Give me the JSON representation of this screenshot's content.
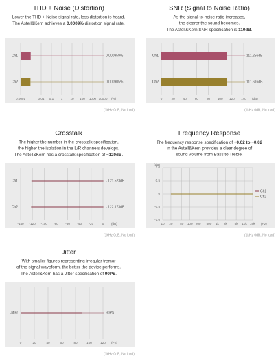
{
  "chart_data": [
    {
      "type": "bar",
      "title": "THD + Noise (Distortion)",
      "description": [
        "Lower the THD + Noise signal rate, less distortion is heard.",
        {
          "before": "The Astell&Kern achieves a ",
          "bold": "0.0009%",
          "after": " distortion signal rate."
        }
      ],
      "categories": [
        "Ch1",
        "Ch2"
      ],
      "values": [
        0.000959,
        0.000905
      ],
      "value_labels": [
        "0.000959%",
        "0.000905%"
      ],
      "colors": [
        "#a8506a",
        "#98802e"
      ],
      "bar_style": "solid",
      "xscale": "log",
      "xlim": [
        0.0001,
        10000
      ],
      "xticks": [
        0.0001,
        0.01,
        0.1,
        1,
        10,
        100,
        1000,
        10000
      ],
      "xlabel": "(%)",
      "grid": true,
      "note": "(1kHz 0dB, No load)"
    },
    {
      "type": "bar",
      "title": "SNR (Signal to Noise Ratio)",
      "description": [
        "As the signal-to-noise ratio increases,",
        "the clearer the sound becomes.",
        {
          "before": "The Astell&Kern SNR specification is ",
          "bold": "110dB",
          "after": "."
        }
      ],
      "categories": [
        "Ch1",
        "Ch2"
      ],
      "values": [
        111.256,
        111.616
      ],
      "value_labels": [
        "111.256dB",
        "111.616dB"
      ],
      "colors": [
        "#a8506a",
        "#98802e"
      ],
      "bar_style": "solid",
      "xlim": [
        0,
        140
      ],
      "xticks": [
        0,
        20,
        40,
        60,
        80,
        100,
        120,
        140
      ],
      "xlabel": "(dB)",
      "grid": true,
      "note": "(1kHz 0dB, No load)"
    },
    {
      "type": "bar",
      "title": "Crosstalk",
      "description": [
        "The higher the number in the crosstalk specification,",
        "the higher the isolation in the L/R channels develops.",
        {
          "before": "The Astell&Kern has a crosstalk specification of ",
          "bold": "−120dB",
          "after": "."
        }
      ],
      "categories": [
        "Ch1",
        "Ch2"
      ],
      "values": [
        -121.523,
        -122.173
      ],
      "value_labels": [
        "- 121.523dB",
        "- 122.173dB"
      ],
      "colors": [
        "#8a3a48",
        "#8a3a48"
      ],
      "bar_style": "line",
      "xlim": [
        -140,
        0
      ],
      "xticks": [
        -140,
        -120,
        -100,
        -80,
        -60,
        -40,
        -20,
        0
      ],
      "xlabel": "(dB)",
      "grid": true,
      "note": "(1kHz 0dB, No load)"
    },
    {
      "type": "line",
      "title": "Frequency Response",
      "description": [
        {
          "before": "The frequency response specification of ",
          "bold": "+0.02 to −0.02"
        },
        "in the Astell&Kern provides a clear degree of",
        "sound volume from Bass to Treble."
      ],
      "x": [
        20,
        100,
        1000,
        10000,
        20000
      ],
      "series": [
        {
          "name": "Ch1",
          "color": "#8a3a48",
          "values": [
            0,
            0,
            0,
            0,
            0
          ]
        },
        {
          "name": "Ch2",
          "color": "#98802e",
          "values": [
            0,
            0,
            0,
            0,
            0
          ]
        }
      ],
      "xscale": "log",
      "xlim": [
        10,
        20000
      ],
      "xticks": [
        10,
        20,
        50,
        100,
        200,
        500,
        {
          "value": 1000,
          "label": "1k"
        },
        {
          "value": 2000,
          "label": "2k"
        },
        {
          "value": 5000,
          "label": "5k"
        },
        {
          "value": 10000,
          "label": "10k"
        },
        {
          "value": 20000,
          "label": "20k"
        }
      ],
      "xlabel": "(Hz)",
      "ylim": [
        -1,
        1
      ],
      "yticks": [
        {
          "value": -1,
          "label": "-1.0"
        },
        -0.5,
        0,
        0.5,
        {
          "value": 1,
          "label": "1.0"
        }
      ],
      "ylabel": "(dB)",
      "grid": true,
      "legend": "right",
      "note": "(1kHz 0dB, No load)"
    },
    {
      "type": "bar",
      "title": "Jitter",
      "description": [
        "With smaller figures representing irregular tremor",
        "of the signal waveform, the better the device performs.",
        {
          "before": "The Astell&Kern has a Jitter specification of ",
          "bold": "90PS",
          "after": "."
        }
      ],
      "categories": [
        "Jitter"
      ],
      "values": [
        90
      ],
      "value_labels": [
        "90PS"
      ],
      "colors": [
        "#8a3a48"
      ],
      "bar_style": "line",
      "xlim": [
        0,
        120
      ],
      "xticks": [
        0,
        20,
        40,
        60,
        80,
        100,
        120
      ],
      "xlabel": "(PS)",
      "grid": true,
      "note": "(1kHz 0dB, No load)"
    }
  ]
}
